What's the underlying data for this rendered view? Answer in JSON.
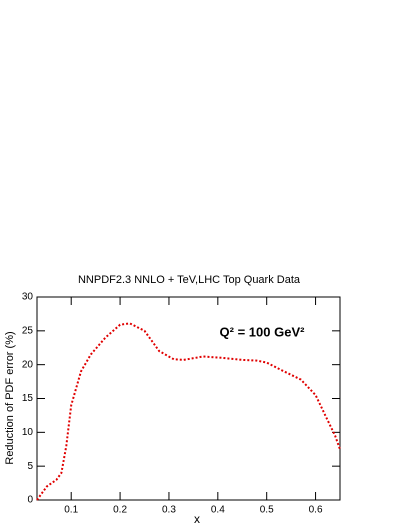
{
  "chart_data": {
    "type": "line",
    "title": "NNPDF2.3 NNLO + TeV,LHC Top Quark Data",
    "x_label": "x",
    "y_label": "Reduction of PDF error (%)",
    "annotation": "Q² = 100 GeV²",
    "xlim": [
      0.03,
      0.65
    ],
    "ylim": [
      0,
      30
    ],
    "xticks": [
      0.1,
      0.2,
      0.3,
      0.4,
      0.5,
      0.6
    ],
    "yticks": [
      0,
      5,
      10,
      15,
      20,
      25,
      30
    ],
    "series": [
      {
        "color": "#e00000",
        "x": [
          0.03,
          0.04,
          0.05,
          0.07,
          0.08,
          0.09,
          0.1,
          0.12,
          0.14,
          0.17,
          0.2,
          0.22,
          0.25,
          0.28,
          0.31,
          0.33,
          0.37,
          0.41,
          0.45,
          0.48,
          0.5,
          0.53,
          0.57,
          0.6,
          0.62,
          0.64,
          0.65
        ],
        "values": [
          0,
          1,
          2,
          3,
          4,
          8,
          14,
          19,
          21.5,
          24,
          25.9,
          26.1,
          25,
          22,
          20.8,
          20.7,
          21.2,
          21,
          20.7,
          20.6,
          20.3,
          19.2,
          17.8,
          15.5,
          12.5,
          9.5,
          7.5
        ]
      }
    ]
  }
}
